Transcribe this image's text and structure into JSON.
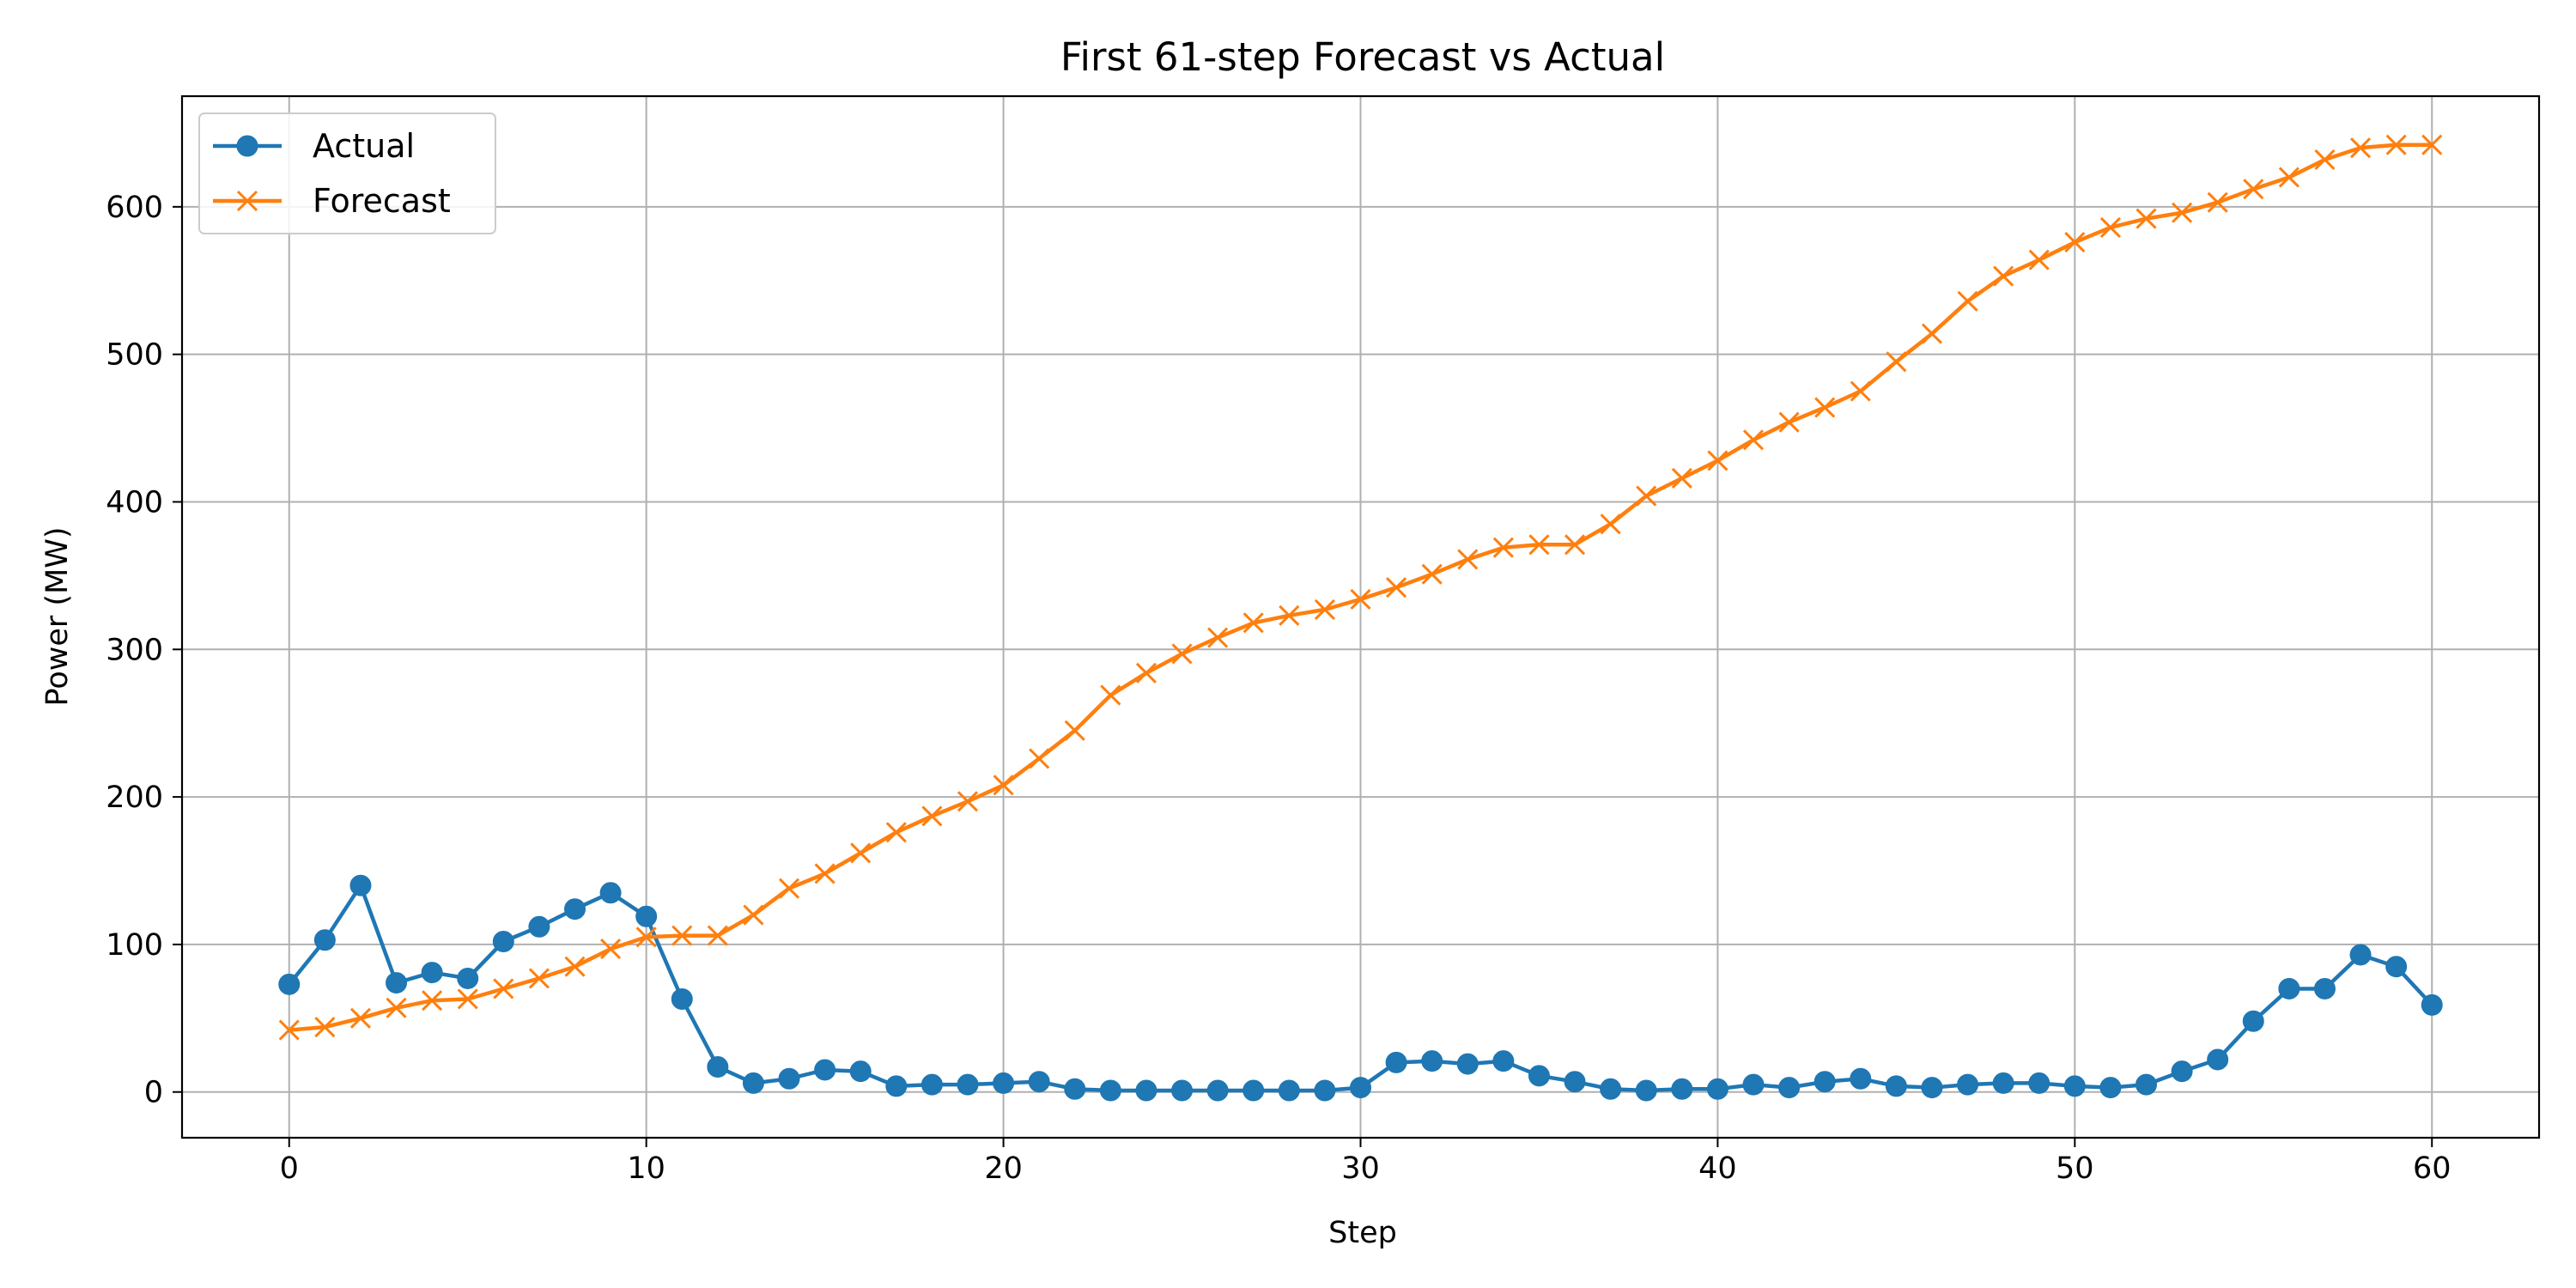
{
  "chart_data": {
    "type": "line",
    "title": "First 61-step Forecast vs Actual",
    "xlabel": "Step",
    "ylabel": "Power (MW)",
    "xlim": [
      -3,
      63
    ],
    "ylim": [
      -31,
      675
    ],
    "x_ticks": [
      0,
      10,
      20,
      30,
      40,
      50,
      60
    ],
    "y_ticks": [
      0,
      100,
      200,
      300,
      400,
      500,
      600
    ],
    "grid": true,
    "legend_position": "top-left",
    "x": [
      0,
      1,
      2,
      3,
      4,
      5,
      6,
      7,
      8,
      9,
      10,
      11,
      12,
      13,
      14,
      15,
      16,
      17,
      18,
      19,
      20,
      21,
      22,
      23,
      24,
      25,
      26,
      27,
      28,
      29,
      30,
      31,
      32,
      33,
      34,
      35,
      36,
      37,
      38,
      39,
      40,
      41,
      42,
      43,
      44,
      45,
      46,
      47,
      48,
      49,
      50,
      51,
      52,
      53,
      54,
      55,
      56,
      57,
      58,
      59,
      60
    ],
    "series": [
      {
        "name": "Actual",
        "color": "#1f77b4",
        "marker": "circle",
        "values": [
          73,
          103,
          140,
          74,
          81,
          77,
          102,
          112,
          124,
          135,
          119,
          63,
          17,
          6,
          9,
          15,
          14,
          4,
          5,
          5,
          6,
          7,
          2,
          1,
          1,
          1,
          1,
          1,
          1,
          1,
          3,
          20,
          21,
          19,
          21,
          11,
          7,
          2,
          1,
          2,
          2,
          5,
          3,
          7,
          9,
          4,
          3,
          5,
          6,
          6,
          4,
          3,
          5,
          14,
          22,
          48,
          70,
          70,
          93,
          85,
          59
        ]
      },
      {
        "name": "Forecast",
        "color": "#ff7f0e",
        "marker": "x",
        "values": [
          42,
          44,
          50,
          57,
          62,
          63,
          70,
          77,
          85,
          97,
          105,
          106,
          106,
          120,
          138,
          148,
          162,
          176,
          187,
          197,
          208,
          226,
          245,
          269,
          284,
          297,
          308,
          318,
          323,
          327,
          334,
          342,
          351,
          361,
          369,
          371,
          371,
          385,
          404,
          416,
          428,
          442,
          454,
          464,
          475,
          495,
          514,
          536,
          553,
          564,
          576,
          586,
          592,
          596,
          603,
          612,
          620,
          632,
          640,
          642,
          642
        ]
      }
    ]
  }
}
